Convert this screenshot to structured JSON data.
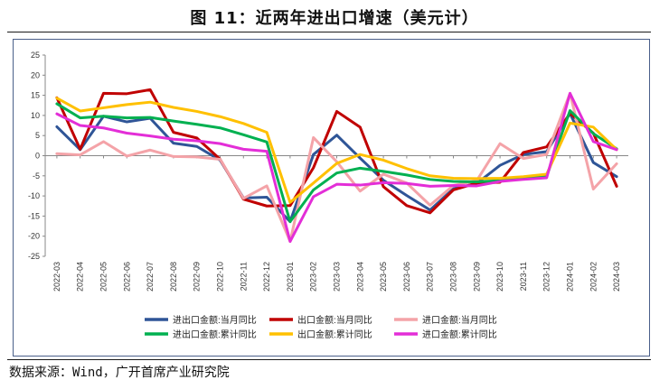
{
  "title": "图 11：近两年进出口增速（美元计）",
  "source": "数据来源：Wind，广开首席产业研究院",
  "chart_data": {
    "type": "line",
    "title": "图 11：近两年进出口增速（美元计）",
    "xlabel": "",
    "ylabel": "",
    "x": [
      "2022-03",
      "2022-04",
      "2022-05",
      "2022-06",
      "2022-07",
      "2022-08",
      "2022-09",
      "2022-10",
      "2022-11",
      "2022-12",
      "2023-01",
      "2023-02",
      "2023-03",
      "2023-04",
      "2023-05",
      "2023-06",
      "2023-07",
      "2023-08",
      "2023-09",
      "2023-10",
      "2023-11",
      "2023-12",
      "2024-01",
      "2024-02",
      "2024-03"
    ],
    "ylim": [
      -25,
      25
    ],
    "yticks": [
      -25,
      -20,
      -15,
      -10,
      -5,
      0,
      5,
      10,
      15,
      20,
      25
    ],
    "grid": false,
    "legend_position": "bottom",
    "series": [
      {
        "name": "进出口金额:当月同比",
        "color": "#2f5597",
        "values": [
          7.2,
          1.5,
          9.8,
          8.4,
          9.3,
          3.1,
          2.3,
          -1.1,
          -10.5,
          -10.3,
          -16.4,
          0.3,
          5.1,
          -0.6,
          -6.1,
          -9.9,
          -13.5,
          -8.2,
          -6.9,
          -2.4,
          0.3,
          1.0,
          10.5,
          -1.7,
          -5.2
        ]
      },
      {
        "name": "出口金额:当月同比",
        "color": "#c00000",
        "values": [
          14.4,
          1.6,
          15.5,
          15.4,
          16.4,
          5.8,
          4.4,
          -0.9,
          -10.8,
          -12.5,
          -12.4,
          -3.0,
          11.0,
          7.1,
          -7.7,
          -12.4,
          -14.2,
          -8.5,
          -6.8,
          -6.6,
          0.8,
          2.2,
          10.5,
          5.6,
          -7.6
        ]
      },
      {
        "name": "进口金额:当月同比",
        "color": "#f4a3a8",
        "values": [
          0.5,
          0.2,
          3.5,
          -0.1,
          1.4,
          -0.2,
          -0.3,
          -0.9,
          -10.6,
          -7.5,
          -21.3,
          4.5,
          -1.5,
          -8.8,
          -4.6,
          -6.8,
          -12.3,
          -7.4,
          -6.2,
          3.0,
          -0.7,
          0.3,
          15.5,
          -8.3,
          -2.0
        ]
      },
      {
        "name": "进出口金额:累计同比",
        "color": "#00b050",
        "values": [
          12.9,
          9.4,
          9.8,
          9.4,
          9.5,
          8.6,
          7.8,
          6.9,
          5.2,
          3.4,
          -16.4,
          -8.5,
          -4.3,
          -3.1,
          -3.9,
          -4.8,
          -5.9,
          -6.4,
          -6.5,
          -6.2,
          -5.7,
          -5.1,
          11.2,
          5.5,
          1.7
        ]
      },
      {
        "name": "出口金额:累计同比",
        "color": "#ffc000",
        "values": [
          14.3,
          11.1,
          11.9,
          12.7,
          13.3,
          12.0,
          11.0,
          9.7,
          8.0,
          5.8,
          -11.6,
          -6.8,
          -1.9,
          0.3,
          -1.1,
          -3.2,
          -5.0,
          -5.6,
          -5.7,
          -5.6,
          -5.2,
          -4.6,
          8.1,
          7.1,
          1.5
        ]
      },
      {
        "name": "进口金额:累计同比",
        "color": "#e32ed7",
        "values": [
          10.4,
          7.5,
          6.9,
          5.6,
          4.9,
          4.1,
          3.7,
          3.0,
          1.6,
          1.1,
          -21.3,
          -10.2,
          -7.1,
          -7.3,
          -6.7,
          -6.9,
          -7.6,
          -7.4,
          -7.5,
          -6.4,
          -5.9,
          -5.5,
          15.5,
          3.5,
          1.5
        ]
      }
    ]
  }
}
